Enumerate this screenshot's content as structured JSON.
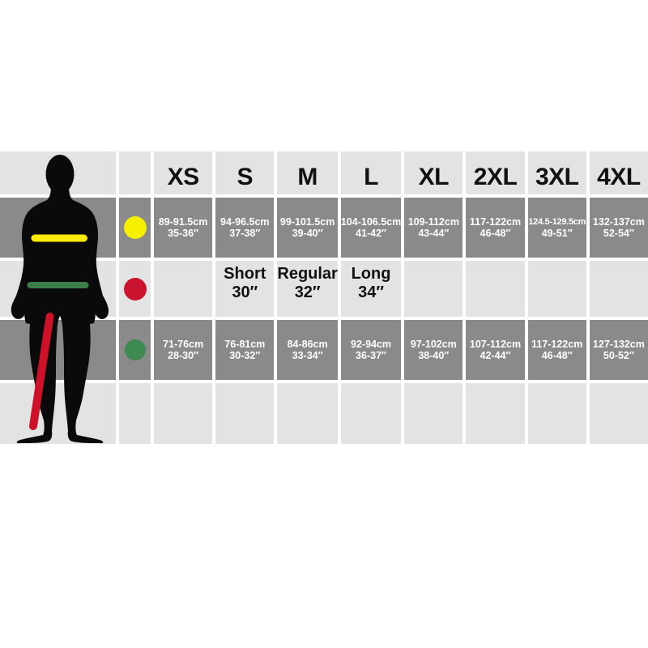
{
  "chart_data": {
    "type": "table",
    "columns": [
      "XS",
      "S",
      "M",
      "L",
      "XL",
      "2XL",
      "3XL",
      "4XL"
    ],
    "rows": [
      {
        "marker": "yellow-dot",
        "marker_color": "#f7ef00",
        "body_line": "chest",
        "line_color": "#ffeb00",
        "cells": [
          {
            "line1": "89-91.5cm",
            "line2": "35-36″"
          },
          {
            "line1": "94-96.5cm",
            "line2": "37-38″"
          },
          {
            "line1": "99-101.5cm",
            "line2": "39-40″"
          },
          {
            "line1": "104-106.5cm",
            "line2": "41-42″"
          },
          {
            "line1": "109-112cm",
            "line2": "43-44″"
          },
          {
            "line1": "117-122cm",
            "line2": "46-48″"
          },
          {
            "line1": "124.5-129.5cm",
            "line2": "49-51″"
          },
          {
            "line1": "132-137cm",
            "line2": "52-54″"
          }
        ]
      },
      {
        "marker": "red-dot",
        "marker_color": "#c9132f",
        "body_line": "inside-leg",
        "line_color": "#cd1128",
        "cells": [
          {
            "line1": "",
            "line2": ""
          },
          {
            "line1": "Short",
            "line2": "30″"
          },
          {
            "line1": "Regular",
            "line2": "32″"
          },
          {
            "line1": "Long",
            "line2": "34″"
          },
          {
            "line1": "",
            "line2": ""
          },
          {
            "line1": "",
            "line2": ""
          },
          {
            "line1": "",
            "line2": ""
          },
          {
            "line1": "",
            "line2": ""
          }
        ]
      },
      {
        "marker": "green-dot",
        "marker_color": "#3e8a52",
        "body_line": "waist",
        "line_color": "#3c7c49",
        "cells": [
          {
            "line1": "71-76cm",
            "line2": "28-30″"
          },
          {
            "line1": "76-81cm",
            "line2": "30-32″"
          },
          {
            "line1": "84-86cm",
            "line2": "33-34″"
          },
          {
            "line1": "92-94cm",
            "line2": "36-37″"
          },
          {
            "line1": "97-102cm",
            "line2": "38-40″"
          },
          {
            "line1": "107-112cm",
            "line2": "42-44″"
          },
          {
            "line1": "117-122cm",
            "line2": "46-48″"
          },
          {
            "line1": "127-132cm",
            "line2": "50-52″"
          }
        ]
      }
    ],
    "colors": {
      "dark_cell": "#8a8a8a",
      "light_cell": "#e3e3e3",
      "silhouette": "#0a0a0a",
      "text_on_dark": "#ffffff",
      "text_on_light": "#111111",
      "background": "#ffffff"
    },
    "layout_hints": {
      "legend_position": "left-body-markers",
      "grid": "striped-table"
    }
  }
}
